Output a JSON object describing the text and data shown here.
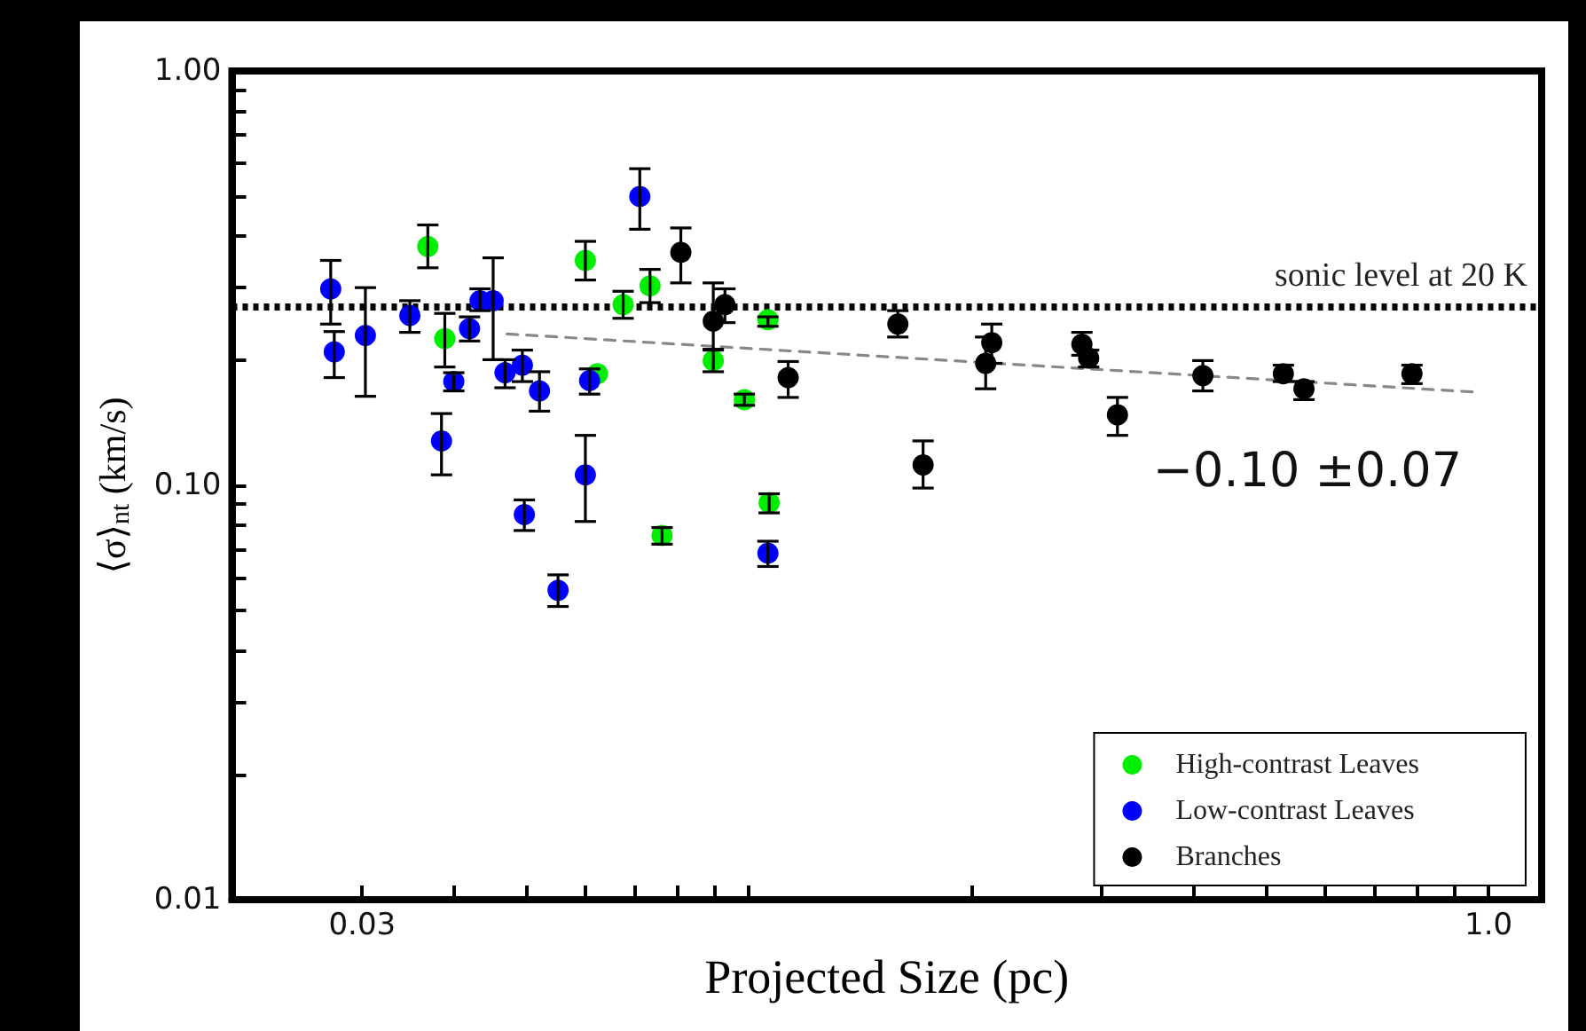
{
  "chart_data": {
    "type": "scatter",
    "xlabel": "Projected Size (pc)",
    "ylabel": "⟨σ⟩$_{nt}$ (km/s)",
    "log": "xy",
    "marker": "circle",
    "legend": "bottom right",
    "xlim": [
      0.02,
      1.18
    ],
    "ylim": [
      0.01,
      1
    ],
    "xticks": [
      {
        "value": 0.03,
        "label": "0.03"
      },
      {
        "value": 0.04,
        "label": null
      },
      {
        "value": 0.05,
        "label": null
      },
      {
        "value": 0.06,
        "label": null
      },
      {
        "value": 0.07,
        "label": null
      },
      {
        "value": 0.08,
        "label": null
      },
      {
        "value": 0.09,
        "label": null
      },
      {
        "value": 0.1,
        "label": null
      },
      {
        "value": 0.2,
        "label": null
      },
      {
        "value": 0.3,
        "label": null
      },
      {
        "value": 0.4,
        "label": null
      },
      {
        "value": 0.5,
        "label": null
      },
      {
        "value": 0.6,
        "label": null
      },
      {
        "value": 0.7,
        "label": null
      },
      {
        "value": 0.8,
        "label": null
      },
      {
        "value": 0.9,
        "label": null
      },
      {
        "value": 1,
        "label": "1.0"
      }
    ],
    "yticks": [
      {
        "value": 0.01,
        "label": "0.01"
      },
      {
        "value": 0.02,
        "label": null
      },
      {
        "value": 0.03,
        "label": null
      },
      {
        "value": 0.04,
        "label": null
      },
      {
        "value": 0.05,
        "label": null
      },
      {
        "value": 0.06,
        "label": null
      },
      {
        "value": 0.07,
        "label": null
      },
      {
        "value": 0.08,
        "label": null
      },
      {
        "value": 0.09,
        "label": null
      },
      {
        "value": 0.1,
        "label": "0.10"
      },
      {
        "value": 0.2,
        "label": null
      },
      {
        "value": 0.3,
        "label": null
      },
      {
        "value": 0.4,
        "label": null
      },
      {
        "value": 0.5,
        "label": null
      },
      {
        "value": 0.6,
        "label": null
      },
      {
        "value": 0.7,
        "label": null
      },
      {
        "value": 0.8,
        "label": null
      },
      {
        "value": 0.9,
        "label": null
      },
      {
        "value": 1,
        "label": "1.00"
      }
    ],
    "ref_lines": [
      {
        "axis": "y",
        "value": 0.27,
        "label": "sonic level at 20 K",
        "color": "#000000",
        "line_style": "dotted"
      }
    ],
    "annotations": [
      "−0.10 ±0.07"
    ],
    "series": [
      {
        "name": "High-contrast Leaves",
        "color": "#00ee00",
        "x": [
          0.0368,
          0.0388,
          0.0601,
          0.0735,
          0.0676,
          0.0624,
          0.0895,
          0.0986,
          0.1061,
          0.1065,
          0.0763
        ],
        "values": [
          0.377,
          0.226,
          0.349,
          0.303,
          0.273,
          0.186,
          0.2,
          0.161,
          0.251,
          0.0908,
          0.0757
        ],
        "errors": [
          [
            0.335,
            0.425
          ],
          [
            0.193,
            0.26
          ],
          [
            0.313,
            0.388
          ],
          [
            0.276,
            0.332
          ],
          [
            0.253,
            0.294
          ],
          null,
          [
            0.188,
            0.212
          ],
          [
            0.156,
            0.166
          ],
          [
            0.242,
            0.255
          ],
          [
            0.0858,
            0.0954
          ],
          [
            0.0721,
            0.0791
          ]
        ]
      },
      {
        "name": "Low-contrast Leaves",
        "color": "#0000ff",
        "x": [
          0.0272,
          0.0275,
          0.0303,
          0.0348,
          0.0399,
          0.0384,
          0.0419,
          0.0433,
          0.0451,
          0.0468,
          0.0494,
          0.0521,
          0.0497,
          0.0552,
          0.0712,
          0.0609,
          0.0601,
          0.1061
        ],
        "values": [
          0.298,
          0.21,
          0.23,
          0.257,
          0.178,
          0.128,
          0.239,
          0.279,
          0.279,
          0.187,
          0.195,
          0.169,
          0.085,
          0.0558,
          0.498,
          0.179,
          0.106,
          0.0686
        ],
        "errors": [
          [
            0.245,
            0.349
          ],
          [
            0.182,
            0.235
          ],
          [
            0.164,
            0.3
          ],
          [
            0.234,
            0.279
          ],
          [
            0.169,
            0.187
          ],
          [
            0.106,
            0.149
          ],
          [
            0.223,
            0.255
          ],
          [
            0.264,
            0.298
          ],
          [
            0.201,
            0.354
          ],
          [
            0.172,
            0.201
          ],
          [
            0.178,
            0.212
          ],
          [
            0.151,
            0.188
          ],
          [
            0.0778,
            0.0922
          ],
          [
            0.051,
            0.0608
          ],
          [
            0.415,
            0.581
          ],
          [
            0.166,
            0.191
          ],
          [
            0.0818,
            0.132
          ],
          [
            0.0637,
            0.0733
          ]
        ]
      },
      {
        "name": "Branches",
        "color": "#000000",
        "x": [
          0.0809,
          0.0895,
          0.0928,
          0.113,
          0.159,
          0.172,
          0.209,
          0.213,
          0.282,
          0.288,
          0.315,
          0.411,
          0.528,
          0.563,
          0.788
        ],
        "values": [
          0.365,
          0.249,
          0.273,
          0.182,
          0.245,
          0.112,
          0.197,
          0.221,
          0.219,
          0.203,
          0.148,
          0.184,
          0.186,
          0.171,
          0.186
        ],
        "errors": [
          [
            0.308,
            0.418
          ],
          [
            0.213,
            0.308
          ],
          [
            0.247,
            0.298
          ],
          [
            0.163,
            0.199
          ],
          [
            0.228,
            0.264
          ],
          [
            0.0985,
            0.128
          ],
          [
            0.171,
            0.228
          ],
          [
            0.197,
            0.245
          ],
          [
            0.206,
            0.234
          ],
          [
            0.193,
            0.212
          ],
          [
            0.132,
            0.163
          ],
          [
            0.169,
            0.2
          ],
          [
            0.178,
            0.195
          ],
          [
            0.161,
            0.178
          ],
          [
            0.176,
            0.195
          ]
        ]
      },
      {
        "type": "line",
        "color": "#888888",
        "line_style": "dashed",
        "marker": "none",
        "x": [
          0.0471,
          0.954
        ],
        "values": [
          0.232,
          0.168
        ]
      }
    ]
  }
}
